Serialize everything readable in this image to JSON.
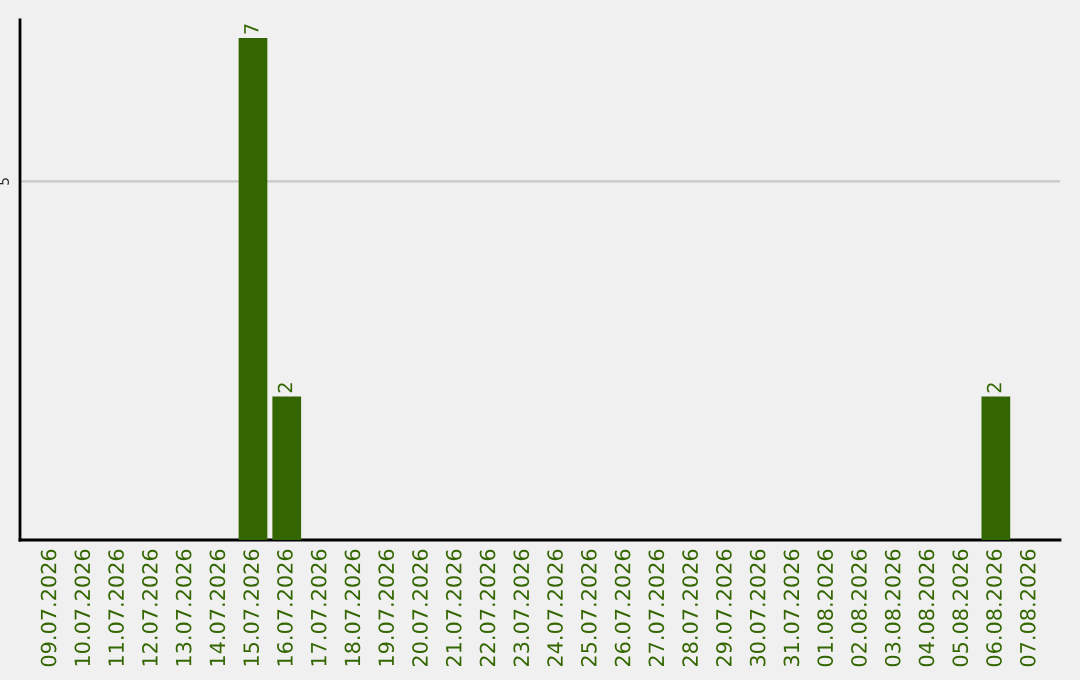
{
  "chart_data": {
    "type": "bar",
    "categories": [
      "09.07.2026",
      "10.07.2026",
      "11.07.2026",
      "12.07.2026",
      "13.07.2026",
      "14.07.2026",
      "15.07.2026",
      "16.07.2026",
      "17.07.2026",
      "18.07.2026",
      "19.07.2026",
      "20.07.2026",
      "21.07.2026",
      "22.07.2026",
      "23.07.2026",
      "24.07.2026",
      "25.07.2026",
      "26.07.2026",
      "27.07.2026",
      "28.07.2026",
      "29.07.2026",
      "30.07.2026",
      "31.07.2026",
      "01.08.2026",
      "02.08.2026",
      "03.08.2026",
      "04.08.2026",
      "05.08.2026",
      "06.08.2026",
      "07.08.2026"
    ],
    "values": [
      0,
      0,
      0,
      0,
      0,
      0,
      7,
      2,
      0,
      0,
      0,
      0,
      0,
      0,
      0,
      0,
      0,
      0,
      0,
      0,
      0,
      0,
      0,
      0,
      0,
      0,
      0,
      0,
      2,
      0
    ],
    "value_labels": [
      null,
      null,
      null,
      null,
      null,
      null,
      "7",
      "2",
      null,
      null,
      null,
      null,
      null,
      null,
      null,
      null,
      null,
      null,
      null,
      null,
      null,
      null,
      null,
      null,
      null,
      null,
      null,
      null,
      "2",
      null
    ],
    "color": "#336600",
    "ylim": [
      0,
      7.25
    ],
    "yticks": [
      5
    ],
    "grid": "y",
    "legend": false
  }
}
